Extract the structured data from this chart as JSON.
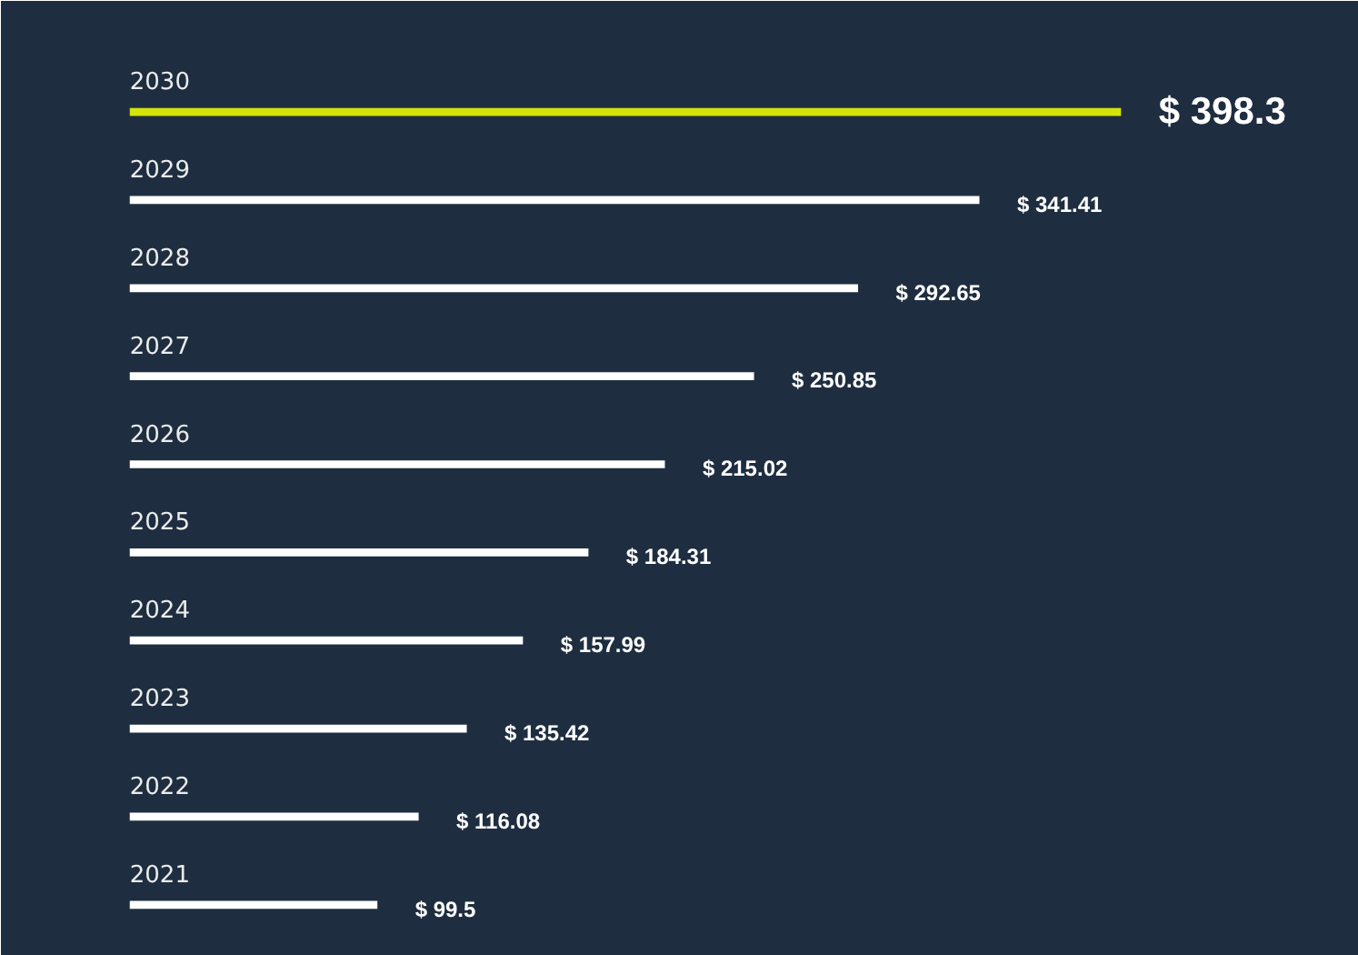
{
  "chart_data": {
    "type": "bar",
    "orientation": "horizontal",
    "categories": [
      "2030",
      "2029",
      "2028",
      "2027",
      "2026",
      "2025",
      "2024",
      "2023",
      "2022",
      "2021"
    ],
    "values": [
      398.3,
      341.41,
      292.65,
      250.85,
      215.02,
      184.31,
      157.99,
      135.42,
      116.08,
      99.5
    ],
    "colors": [
      "#d4e40b",
      "#ffffff",
      "#ffffff",
      "#ffffff",
      "#ffffff",
      "#ffffff",
      "#ffffff",
      "#ffffff",
      "#ffffff",
      "#ffffff"
    ],
    "value_labels": [
      "$ 398.3",
      "$ 341.41",
      "$ 292.65",
      "$ 250.85",
      "$ 215.02",
      "$ 184.31",
      "$ 157.99",
      "$ 135.42",
      "$ 116.08",
      "$ 99.5"
    ]
  }
}
